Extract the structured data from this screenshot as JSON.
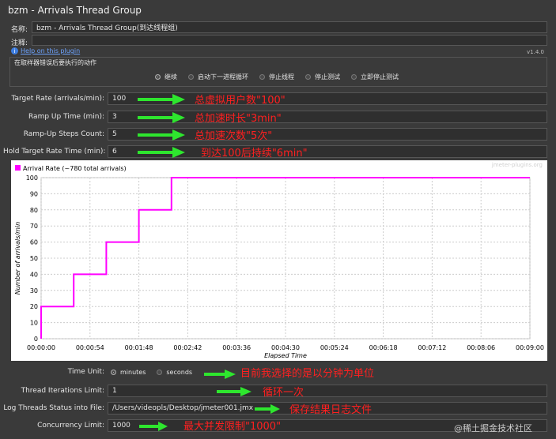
{
  "window": {
    "title": "bzm - Arrivals Thread Group"
  },
  "form": {
    "name_label": "名称:",
    "name_value": "bzm - Arrivals Thread Group(到达线程组)",
    "comment_label": "注释:",
    "comment_value": "",
    "help_link": "Help on this plugin",
    "version": "v1.4.0"
  },
  "sampler_error": {
    "title": "在取样器错误后要执行的动作",
    "options": [
      "继续",
      "启动下一进程循环",
      "停止线程",
      "停止测试",
      "立即停止测试"
    ],
    "selected_index": 0
  },
  "params": [
    {
      "label": "Target Rate (arrivals/min):",
      "value": "100",
      "annotation": "总虚拟用户数\"100\""
    },
    {
      "label": "Ramp Up Time (min):",
      "value": "3",
      "annotation": "总加速时长\"3min\""
    },
    {
      "label": "Ramp-Up Steps Count:",
      "value": "5",
      "annotation": "总加速次数\"5次\""
    },
    {
      "label": "Hold Target Rate Time (min):",
      "value": "6",
      "annotation": "到达100后持续\"6min\""
    }
  ],
  "chart_data": {
    "type": "line",
    "legend": "Arrival Rate (~780 total arrivals)",
    "watermark": "jmeter-plugins.org",
    "ylabel": "Number of arrivals/min",
    "xlabel": "Elapsed Time",
    "ylim": [
      0,
      100
    ],
    "yticks": [
      0,
      10,
      20,
      30,
      40,
      50,
      60,
      70,
      80,
      90,
      100
    ],
    "xlim": [
      0,
      540
    ],
    "xtick_values": [
      0,
      54,
      108,
      162,
      216,
      270,
      324,
      378,
      432,
      486,
      540
    ],
    "xtick_labels": [
      "00:00:00",
      "00:00:54",
      "00:01:48",
      "00:02:42",
      "00:03:36",
      "00:04:30",
      "00:05:24",
      "00:06:18",
      "00:07:12",
      "00:08:06",
      "00:09:00"
    ],
    "series": [
      {
        "name": "Arrival Rate",
        "color": "#ff00ff",
        "x": [
          0,
          0,
          36,
          36,
          72,
          72,
          108,
          108,
          144,
          144,
          180,
          540
        ],
        "y": [
          0,
          20,
          20,
          40,
          40,
          60,
          60,
          80,
          80,
          100,
          100,
          100
        ]
      }
    ],
    "grid": true,
    "legend_position": "top-left"
  },
  "time_unit": {
    "label": "Time Unit:",
    "options": [
      "minutes",
      "seconds"
    ],
    "selected_index": 0,
    "annotation": "目前我选择的是以分钟为单位"
  },
  "iterations": {
    "label": "Thread Iterations Limit:",
    "value": "1",
    "annotation": "循环一次"
  },
  "log_threads": {
    "label": "Log Threads Status into File:",
    "value": "/Users/videopls/Desktop/jmeter001.jmx",
    "annotation": "保存结果日志文件"
  },
  "concurrency": {
    "label": "Concurrency Limit:",
    "value": "1000",
    "annotation": "最大并发限制\"1000\""
  },
  "watermark_text": "@稀土掘金技术社区",
  "colors": {
    "annotation": "#ff2020",
    "arrow": "#2ee62e",
    "series": "#ff00ff"
  }
}
